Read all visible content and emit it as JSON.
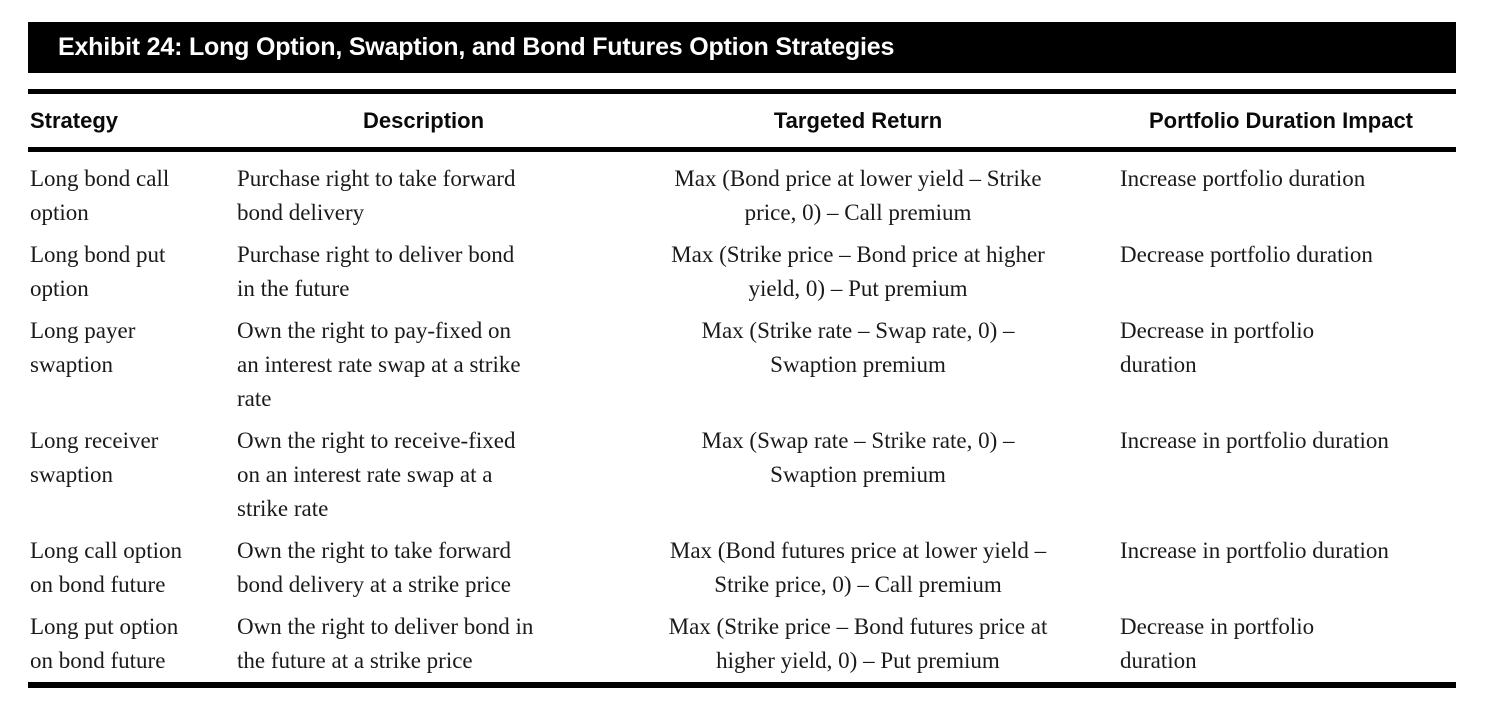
{
  "banner": {
    "title": "Exhibit 24: Long Option, Swaption, and Bond Futures Option Strategies",
    "bg_color": "#000000",
    "text_color": "#ffffff"
  },
  "table": {
    "columns": [
      {
        "key": "strategy",
        "label": "Strategy"
      },
      {
        "key": "description",
        "label": "Description"
      },
      {
        "key": "targeted_return",
        "label": "Targeted Return"
      },
      {
        "key": "duration_impact",
        "label": "Portfolio Duration Impact"
      }
    ],
    "rows": [
      {
        "strategy": "Long bond call\noption",
        "description": "Purchase right to take forward\nbond delivery",
        "targeted_return": "Max (Bond price at lower yield – Strike\nprice, 0) – Call premium",
        "duration_impact": "Increase portfolio duration"
      },
      {
        "strategy": "Long bond put\noption",
        "description": "Purchase right to deliver bond\nin the future",
        "targeted_return": "Max (Strike price – Bond price at higher\nyield, 0) – Put premium",
        "duration_impact": "Decrease portfolio duration"
      },
      {
        "strategy": "Long payer\nswaption",
        "description": "Own the right to pay-fixed on\nan interest rate swap at a strike\nrate",
        "targeted_return": "Max (Strike rate – Swap rate, 0) –\nSwaption premium",
        "duration_impact": "Decrease in portfolio\nduration"
      },
      {
        "strategy": "Long receiver\nswaption",
        "description": "Own the right to receive-fixed\non an interest rate swap at a\nstrike rate",
        "targeted_return": "Max (Swap rate – Strike rate, 0) –\nSwaption premium",
        "duration_impact": "Increase in portfolio duration"
      },
      {
        "strategy": "Long call option\non bond future",
        "description": "Own the right to take forward\nbond delivery at a strike price",
        "targeted_return": "Max (Bond futures price at lower yield –\nStrike price, 0) – Call premium",
        "duration_impact": "Increase in portfolio duration"
      },
      {
        "strategy": "Long put option\non bond future",
        "description": "Own the right to deliver bond in\nthe future at a strike price",
        "targeted_return": "Max (Strike price – Bond futures price at\nhigher yield, 0) – Put premium",
        "duration_impact": "Decrease in portfolio\nduration"
      }
    ]
  }
}
